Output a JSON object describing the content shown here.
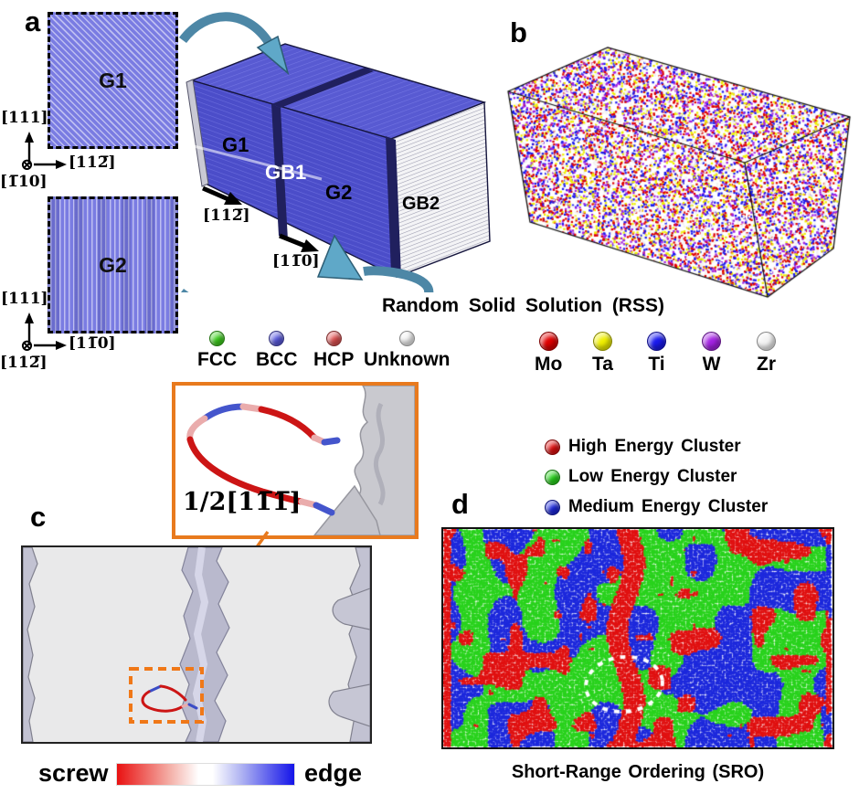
{
  "figure": {
    "panels": {
      "a": {
        "label": "a",
        "grain1": "G1",
        "grain2": "G2",
        "box": {
          "g1": "G1",
          "gb1": "GB1",
          "g2": "G2",
          "gb2": "GB2",
          "dir1": "[112̅]",
          "dir2": "[11̅0]"
        },
        "axes_g1": {
          "up": "[111]",
          "right": "[112̅]",
          "out": "[1̅10]"
        },
        "axes_g2": {
          "up": "[111]",
          "right": "[11̅0]",
          "out": "[112̅]"
        },
        "structure_legend": [
          {
            "label": "FCC",
            "color": "#3ed01e"
          },
          {
            "label": "BCC",
            "color": "#5b5be0"
          },
          {
            "label": "HCP",
            "color": "#e05252"
          },
          {
            "label": "Unknown",
            "color": "#f2f2f2"
          }
        ]
      },
      "b": {
        "label": "b",
        "caption": "Random Solid Solution (RSS)",
        "element_legend": [
          {
            "label": "Mo",
            "color": "#e00000"
          },
          {
            "label": "Ta",
            "color": "#efef00"
          },
          {
            "label": "Ti",
            "color": "#1a1aee"
          },
          {
            "label": "W",
            "color": "#a322e2"
          },
          {
            "label": "Zr",
            "color": "#f2f2f2"
          }
        ]
      },
      "c": {
        "label": "c",
        "burgers_vector": "1/2[11̅1̅]",
        "colorbar": {
          "left": "screw",
          "right": "edge",
          "left_color": "#ee1111",
          "right_color": "#1111ee"
        }
      },
      "d": {
        "label": "d",
        "caption": "Short-Range Ordering (SRO)",
        "cluster_legend": [
          {
            "label": "High Energy Cluster",
            "color": "#e01010"
          },
          {
            "label": "Low Energy Cluster",
            "color": "#28d21c"
          },
          {
            "label": "Medium Energy Cluster",
            "color": "#1c28dc"
          }
        ]
      }
    }
  }
}
